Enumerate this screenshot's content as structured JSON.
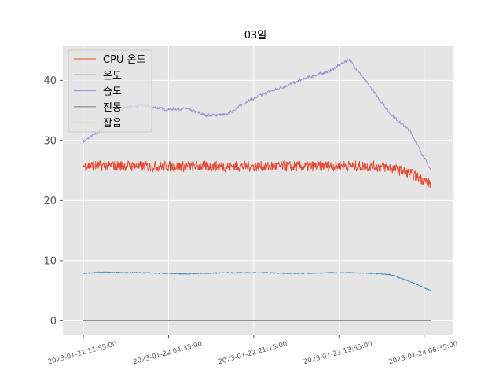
{
  "chart_data": {
    "type": "line",
    "title": "03일",
    "xlabel": "",
    "ylabel": "",
    "x_ticks": [
      "2023-01-21 11:55:00",
      "2023-01-22 04:35:00",
      "2023-01-22 21:15:00",
      "2023-01-23 13:55:00",
      "2023-01-24 06:35:00"
    ],
    "xlim": [
      "2023-01-21 07:55:00",
      "2023-01-24 12:10:00"
    ],
    "ylim": [
      -2.3,
      45.8
    ],
    "y_ticks": [
      0,
      10,
      20,
      30,
      40
    ],
    "grid": true,
    "legend_position": "top-left",
    "x": [
      "2023-01-21 11:55:00",
      "2023-01-21 15:55:00",
      "2023-01-21 19:55:00",
      "2023-01-21 23:55:00",
      "2023-01-22 03:55:00",
      "2023-01-22 07:55:00",
      "2023-01-22 11:55:00",
      "2023-01-22 15:55:00",
      "2023-01-22 19:55:00",
      "2023-01-22 23:55:00",
      "2023-01-23 03:55:00",
      "2023-01-23 07:55:00",
      "2023-01-23 11:55:00",
      "2023-01-23 15:55:00",
      "2023-01-23 19:55:00",
      "2023-01-23 23:55:00",
      "2023-01-24 03:55:00",
      "2023-01-24 07:55:00"
    ],
    "series": [
      {
        "name": "CPU 온도",
        "color": "#e24a33",
        "values": [
          25.8,
          25.8,
          25.8,
          25.7,
          25.7,
          25.7,
          25.7,
          25.7,
          25.7,
          25.7,
          25.7,
          25.7,
          25.8,
          25.8,
          25.7,
          25.5,
          24.5,
          22.8
        ],
        "noise": 0.9
      },
      {
        "name": "온도",
        "color": "#348abd",
        "values": [
          7.9,
          8.1,
          8.0,
          8.0,
          7.9,
          7.8,
          7.9,
          8.0,
          8.0,
          8.0,
          7.9,
          7.9,
          8.0,
          8.0,
          7.9,
          7.7,
          6.5,
          5.0
        ],
        "noise": 0.08
      },
      {
        "name": "습도",
        "color": "#988ed5",
        "values": [
          29.8,
          32.0,
          35.5,
          35.8,
          35.2,
          35.3,
          34.2,
          34.3,
          36.5,
          38.0,
          39.2,
          40.5,
          41.5,
          43.5,
          39.0,
          34.5,
          31.5,
          25.0
        ],
        "noise": 0.25
      },
      {
        "name": "진동",
        "color": "#777777",
        "values": [
          0,
          0,
          0,
          0,
          0,
          0,
          0,
          0,
          0,
          0,
          0,
          0,
          0,
          0,
          0,
          0,
          0,
          0
        ],
        "noise": 0
      },
      {
        "name": "잡음",
        "color": "#fbc15e",
        "values": [
          0,
          0,
          0,
          0,
          0,
          0,
          0,
          0,
          0,
          0,
          0,
          0,
          0,
          0,
          0,
          0,
          0,
          0
        ],
        "noise": 0
      }
    ]
  }
}
